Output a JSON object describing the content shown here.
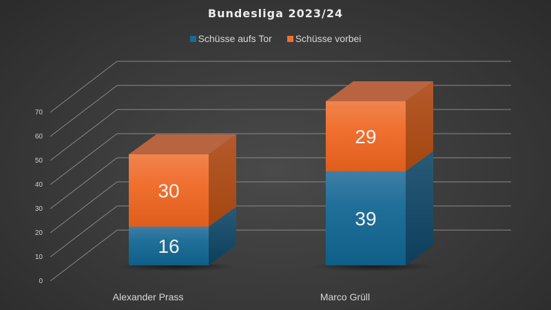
{
  "chart_data": {
    "type": "bar",
    "subtype": "stacked-3d",
    "title": "Bundesliga 2023/24",
    "categories": [
      "Alexander Prass",
      "Marco Grüll"
    ],
    "series": [
      {
        "name": "Schüsse aufs Tor",
        "values": [
          16,
          39
        ],
        "color": "#1a6a94"
      },
      {
        "name": "Schüsse vorbei",
        "values": [
          30,
          29
        ],
        "color": "#f07030"
      }
    ],
    "xlabel": "",
    "ylabel": "",
    "ylim": [
      0,
      70
    ],
    "yticks": [
      0,
      10,
      20,
      30,
      40,
      50,
      60,
      70
    ],
    "grid": true,
    "legend_position": "top"
  },
  "legend": {
    "items": [
      {
        "label": "Schüsse aufs Tor",
        "color": "#1a6a94"
      },
      {
        "label": "Schüsse vorbei",
        "color": "#f07030"
      }
    ]
  }
}
